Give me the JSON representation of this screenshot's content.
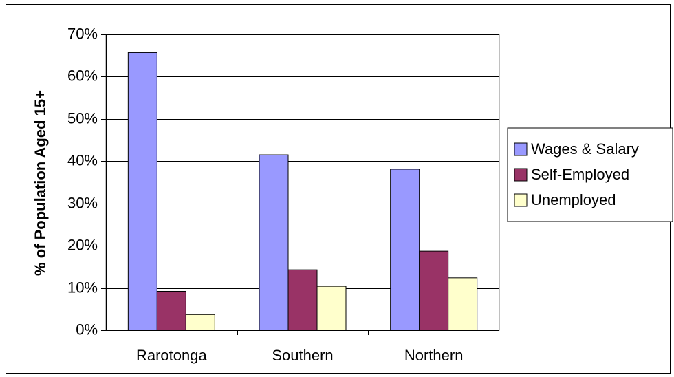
{
  "chart_data": {
    "type": "bar",
    "title": "",
    "xlabel": "",
    "ylabel": "% of Population Aged 15+",
    "categories": [
      "Rarotonga",
      "Southern",
      "Northern"
    ],
    "series": [
      {
        "name": "Wages & Salary",
        "values": [
          65.7,
          41.5,
          38.1
        ],
        "color": "#9999ff"
      },
      {
        "name": "Self-Employed",
        "values": [
          9.2,
          14.3,
          18.7
        ],
        "color": "#993366"
      },
      {
        "name": "Unemployed",
        "values": [
          3.7,
          10.4,
          12.4
        ],
        "color": "#ffffcc"
      }
    ],
    "ylim": [
      0,
      70
    ],
    "yticks": [
      0,
      10,
      20,
      30,
      40,
      50,
      60,
      70
    ],
    "ytick_labels": [
      "0%",
      "10%",
      "20%",
      "30%",
      "40%",
      "50%",
      "60%",
      "70%"
    ],
    "grid": true,
    "legend_position": "right",
    "plot_background": "#ffffff",
    "border_color": "#000000"
  }
}
